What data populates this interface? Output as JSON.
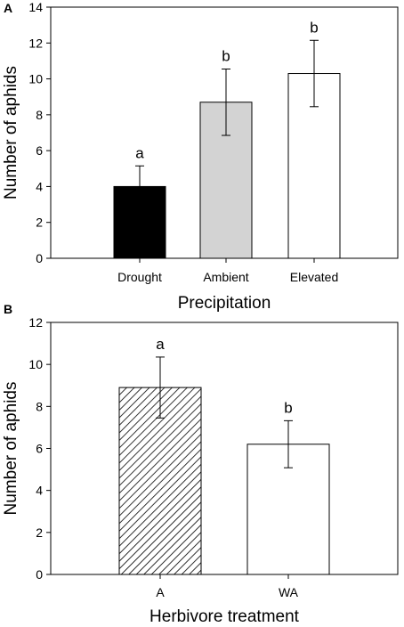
{
  "chart_data": [
    {
      "panel": "A",
      "type": "bar",
      "xlabel": "Precipitation",
      "ylabel": "Number of aphids",
      "ylim": [
        0,
        14
      ],
      "yticks": [
        0,
        2,
        4,
        6,
        8,
        10,
        12,
        14
      ],
      "categories": [
        "Drought",
        "Ambient",
        "Elevated"
      ],
      "values": [
        4.0,
        8.7,
        10.3
      ],
      "errors": [
        1.15,
        1.85,
        1.85
      ],
      "letters": [
        "a",
        "b",
        "b"
      ],
      "fills": [
        "#000000",
        "#d3d3d3",
        "#ffffff"
      ]
    },
    {
      "panel": "B",
      "type": "bar",
      "xlabel": "Herbivore treatment",
      "ylabel": "Number of aphids",
      "ylim": [
        0,
        12
      ],
      "yticks": [
        0,
        2,
        4,
        6,
        8,
        10,
        12
      ],
      "categories": [
        "A",
        "WA"
      ],
      "values": [
        8.9,
        6.2
      ],
      "errors": [
        1.45,
        1.12
      ],
      "letters": [
        "a",
        "b"
      ],
      "fills": [
        "hatched",
        "#ffffff"
      ]
    }
  ]
}
